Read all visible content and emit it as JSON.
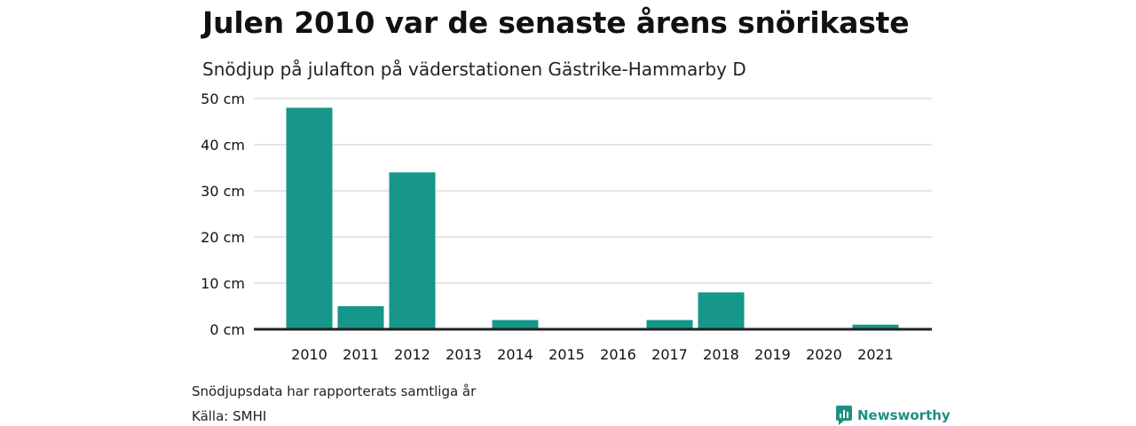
{
  "title": "Julen 2010 var de senaste årens snörikaste",
  "subtitle": "Snödjup på julafton på väderstationen Gästrike-Hammarby D",
  "footnote": "Snödjupsdata har rapporterats samtliga år",
  "source": "Källa: SMHI",
  "brand": {
    "label": "Newsworthy",
    "icon": "newsworthy-logo-icon",
    "color": "#1e8f80"
  },
  "chart_data": {
    "type": "bar",
    "categories": [
      "2010",
      "2011",
      "2012",
      "2013",
      "2014",
      "2015",
      "2016",
      "2017",
      "2018",
      "2019",
      "2020",
      "2021"
    ],
    "values": [
      48,
      5,
      34,
      0,
      2,
      0,
      0,
      2,
      8,
      0,
      0,
      1
    ],
    "y_ticks": [
      0,
      10,
      20,
      30,
      40,
      50
    ],
    "y_tick_labels": [
      "0 cm",
      "10 cm",
      "20 cm",
      "30 cm",
      "40 cm",
      "50 cm"
    ],
    "ylim": [
      0,
      50
    ],
    "grid": true,
    "bar_color": "#16978a",
    "grid_color": "#dddddd",
    "baseline_color": "#222222"
  }
}
